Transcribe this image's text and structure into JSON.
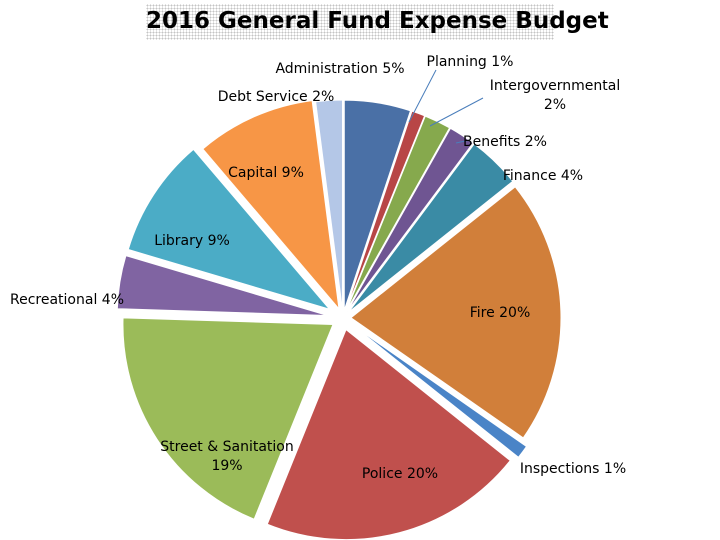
{
  "chart_data": {
    "type": "pie",
    "title": "2016 General Fund Expense Budget",
    "slices": [
      {
        "label": "Administration 5%",
        "value": 5,
        "color": "#4a70a6"
      },
      {
        "label": "Planning 1%",
        "value": 1,
        "color": "#b84646"
      },
      {
        "label": "Intergovernmental 2%",
        "value": 2,
        "color": "#86a94d"
      },
      {
        "label": "Benefits 2%",
        "value": 2,
        "color": "#6f5592"
      },
      {
        "label": "Finance 4%",
        "value": 4,
        "color": "#3a8ba5"
      },
      {
        "label": "Fire 20%",
        "value": 20,
        "color": "#d17f3a"
      },
      {
        "label": "Inspections 1%",
        "value": 1,
        "color": "#4a84c7"
      },
      {
        "label": "Police 20%",
        "value": 20,
        "color": "#c0504d"
      },
      {
        "label": "Street & Sanitation 19%",
        "value": 19,
        "color": "#9bbb59"
      },
      {
        "label": "Recreational 4%",
        "value": 4,
        "color": "#8064a2"
      },
      {
        "label": "Library 9%",
        "value": 9,
        "color": "#4bacc6"
      },
      {
        "label": "Capital 9%",
        "value": 9,
        "color": "#f79646"
      },
      {
        "label": "Debt Service 2%",
        "value": 2,
        "color": "#b4c7e7"
      }
    ]
  }
}
